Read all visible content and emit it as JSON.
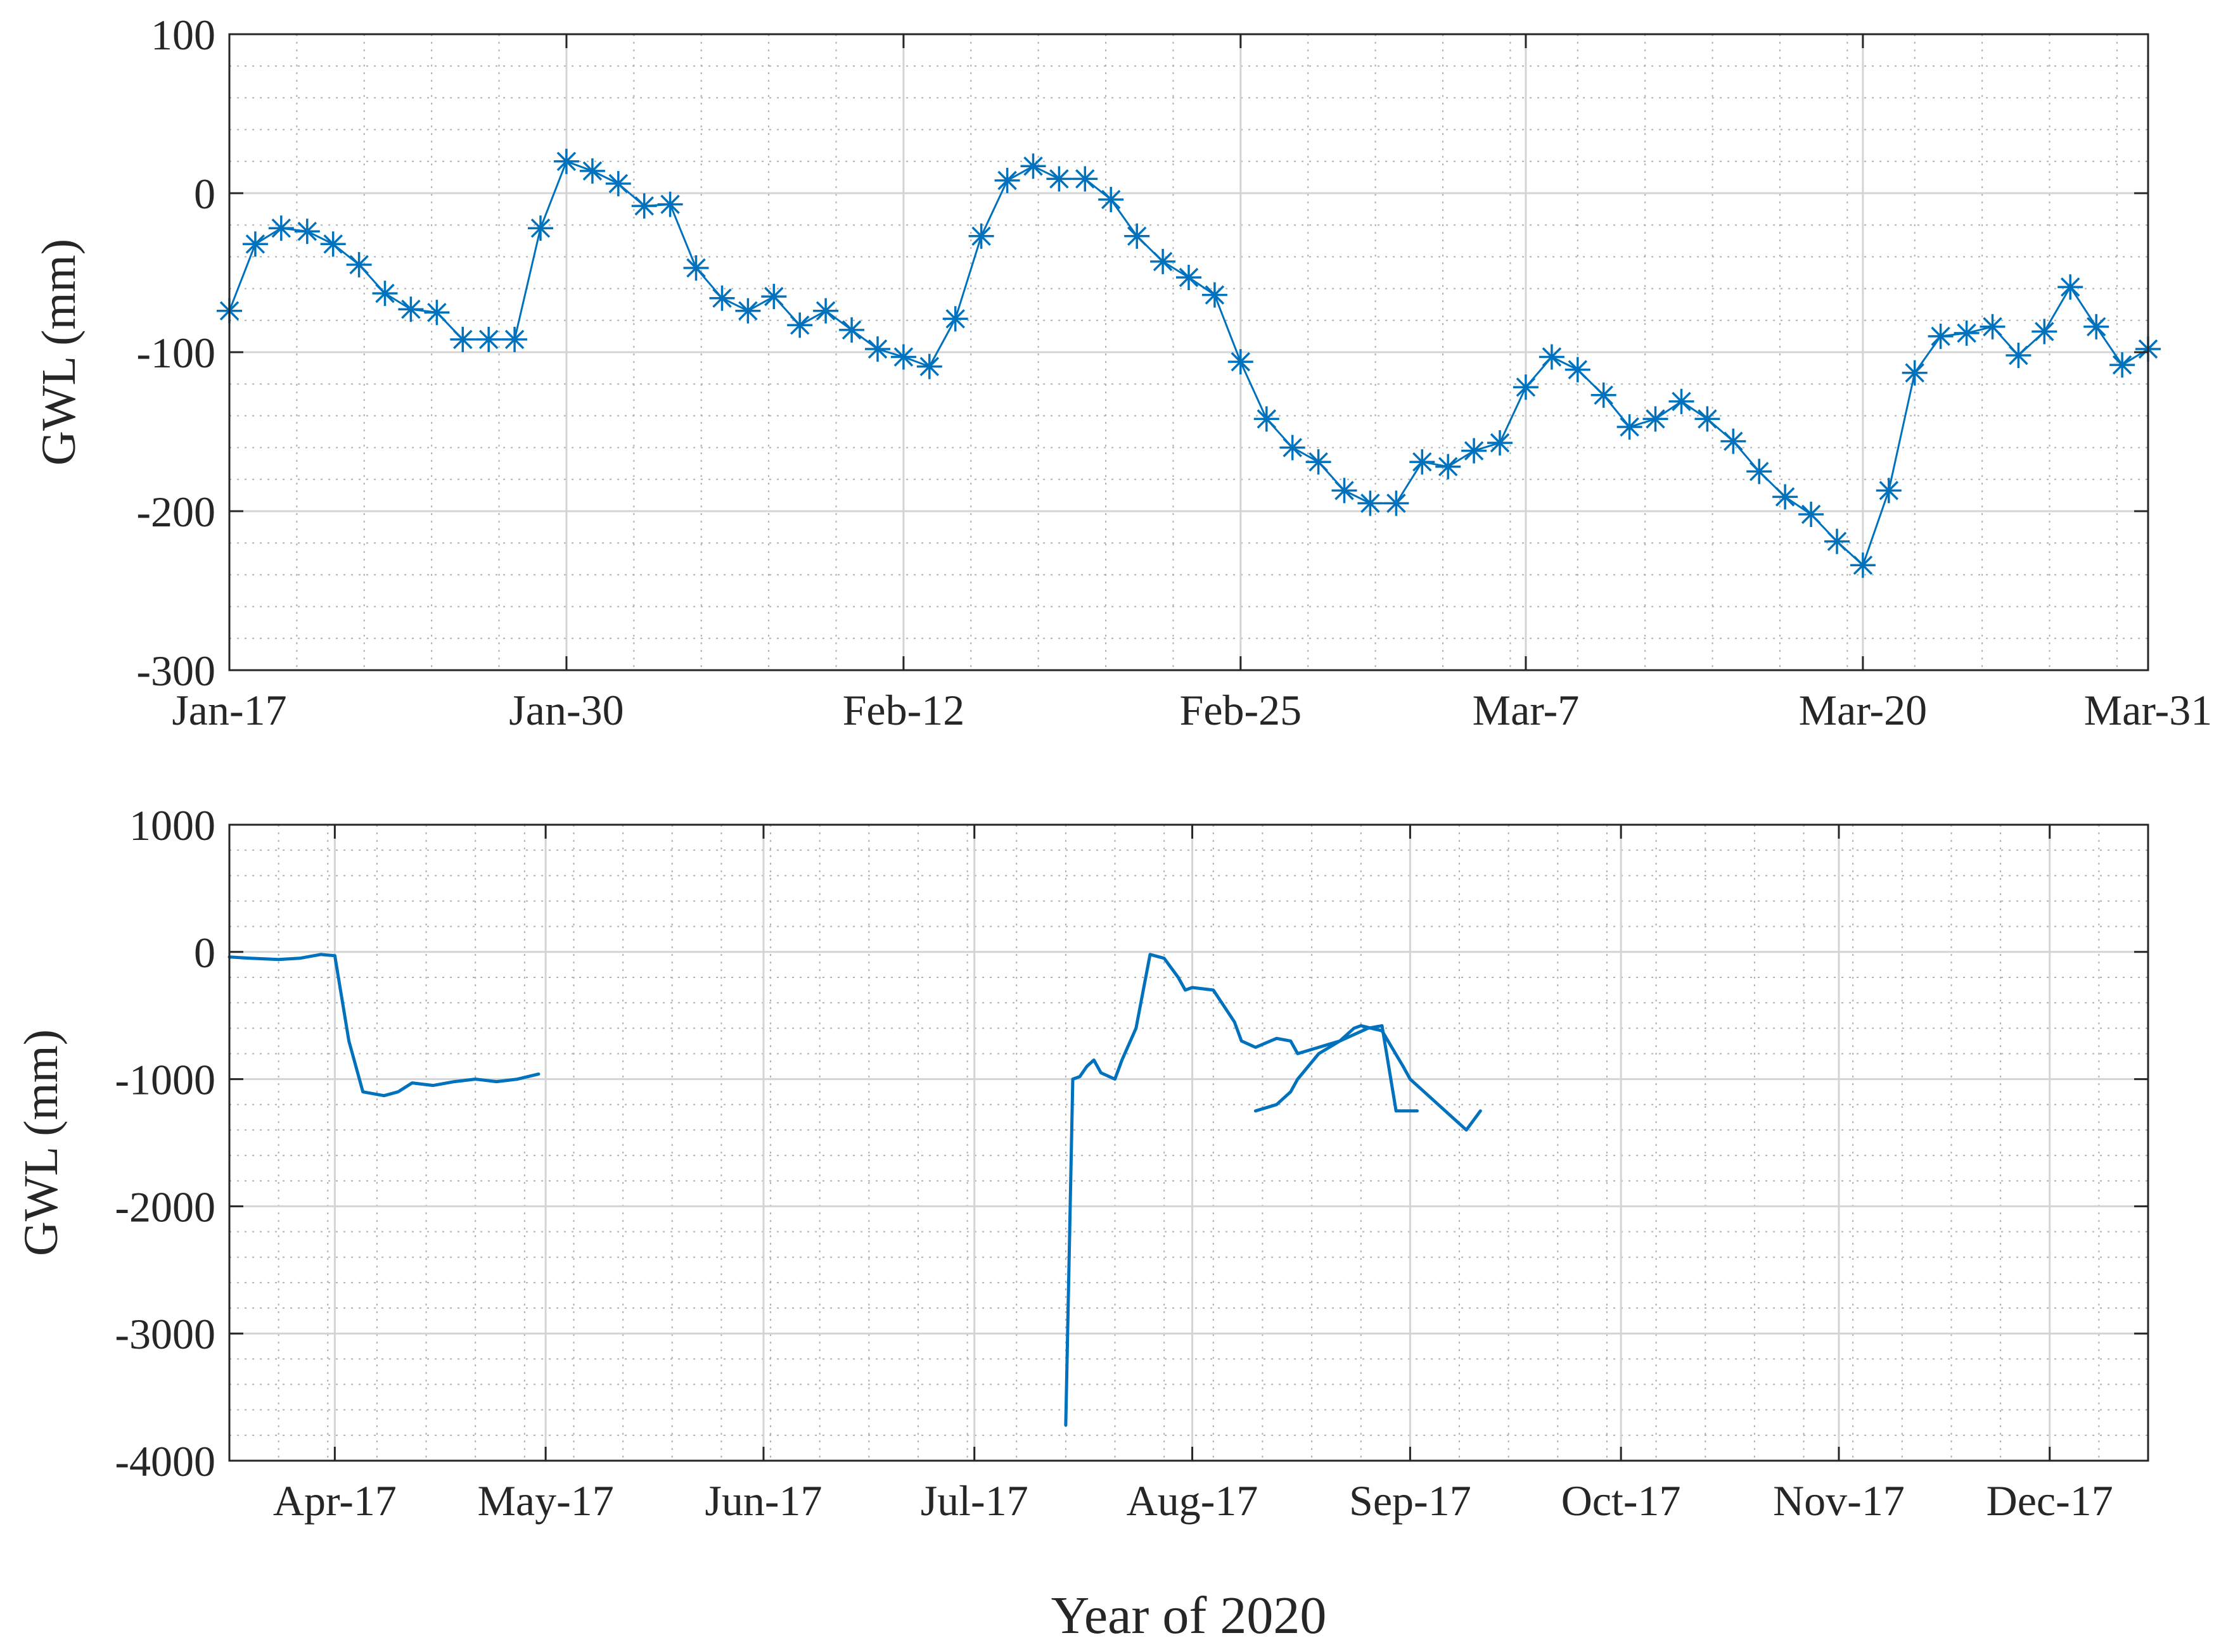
{
  "figure": {
    "xlabel": "Year of 2020"
  },
  "colors": {
    "series": "#0072BD",
    "axis": "#262626",
    "major_grid": "#d4d4d4",
    "minor_grid": "#b0b0b0"
  },
  "chart_data": [
    {
      "type": "line",
      "marker": "asterisk",
      "grid": true,
      "minor_grid": true,
      "ylabel": "GWL (mm)",
      "ylim": [
        -300,
        100
      ],
      "yticks": [
        100,
        0,
        -100,
        -200,
        -300
      ],
      "ytick_labels": [
        "100",
        "0",
        "-100",
        "-200",
        "-300"
      ],
      "xlim": [
        "2020-01-17",
        "2020-03-31"
      ],
      "xticks": [
        "2020-01-17",
        "2020-01-30",
        "2020-02-12",
        "2020-02-25",
        "2020-03-07",
        "2020-03-20",
        "2020-03-31"
      ],
      "xtick_labels": [
        "Jan-17",
        "Jan-30",
        "Feb-12",
        "Feb-25",
        "Mar-7",
        "Mar-20",
        "Mar-31"
      ],
      "series": [
        {
          "dates": [
            "2020-01-17",
            "2020-01-18",
            "2020-01-19",
            "2020-01-20",
            "2020-01-21",
            "2020-01-22",
            "2020-01-23",
            "2020-01-24",
            "2020-01-25",
            "2020-01-26",
            "2020-01-27",
            "2020-01-28",
            "2020-01-29",
            "2020-01-30",
            "2020-01-31",
            "2020-02-01",
            "2020-02-02",
            "2020-02-03",
            "2020-02-04",
            "2020-02-05",
            "2020-02-06",
            "2020-02-07",
            "2020-02-08",
            "2020-02-09",
            "2020-02-10",
            "2020-02-11",
            "2020-02-12",
            "2020-02-13",
            "2020-02-14",
            "2020-02-15",
            "2020-02-16",
            "2020-02-17",
            "2020-02-18",
            "2020-02-19",
            "2020-02-20",
            "2020-02-21",
            "2020-02-22",
            "2020-02-23",
            "2020-02-24",
            "2020-02-25",
            "2020-02-26",
            "2020-02-27",
            "2020-02-28",
            "2020-02-29",
            "2020-03-01",
            "2020-03-02",
            "2020-03-03",
            "2020-03-04",
            "2020-03-05",
            "2020-03-06",
            "2020-03-07",
            "2020-03-08",
            "2020-03-09",
            "2020-03-10",
            "2020-03-11",
            "2020-03-12",
            "2020-03-13",
            "2020-03-14",
            "2020-03-15",
            "2020-03-16",
            "2020-03-17",
            "2020-03-18",
            "2020-03-19",
            "2020-03-20",
            "2020-03-21",
            "2020-03-22",
            "2020-03-23",
            "2020-03-24",
            "2020-03-25",
            "2020-03-26",
            "2020-03-27",
            "2020-03-28",
            "2020-03-29",
            "2020-03-30",
            "2020-03-31"
          ],
          "values": [
            -74,
            -32,
            -22,
            -24,
            -32,
            -45,
            -63,
            -73,
            -75,
            -92,
            -92,
            -92,
            -22,
            20,
            14,
            6,
            -8,
            -7,
            -47,
            -66,
            -74,
            -65,
            -83,
            -74,
            -86,
            -98,
            -103,
            -109,
            -79,
            -27,
            8,
            17,
            9,
            9,
            -4,
            -27,
            -43,
            -53,
            -64,
            -106,
            -142,
            -160,
            -169,
            -187,
            -195,
            -195,
            -169,
            -172,
            -162,
            -157,
            -122,
            -103,
            -111,
            -127,
            -147,
            -142,
            -131,
            -142,
            -156,
            -175,
            -191,
            -202,
            -219,
            -234,
            -187,
            -113,
            -90,
            -88,
            -84,
            -102,
            -87,
            -59,
            -84,
            -108,
            -98
          ]
        }
      ]
    },
    {
      "type": "line",
      "marker": "none",
      "grid": true,
      "minor_grid": true,
      "ylabel": "GWL (mm)",
      "ylim": [
        -4000,
        1000
      ],
      "yticks": [
        1000,
        0,
        -1000,
        -2000,
        -3000,
        -4000
      ],
      "ytick_labels": [
        "1000",
        "0",
        "-1000",
        "-2000",
        "-3000",
        "-4000"
      ],
      "xlim": [
        "2020-04-02",
        "2020-12-31"
      ],
      "xticks": [
        "2020-04-17",
        "2020-05-17",
        "2020-06-17",
        "2020-07-17",
        "2020-08-17",
        "2020-09-17",
        "2020-10-17",
        "2020-11-17",
        "2020-12-17"
      ],
      "xtick_labels": [
        "Apr-17",
        "May-17",
        "Jun-17",
        "Jul-17",
        "Aug-17",
        "Sep-17",
        "Oct-17",
        "Nov-17",
        "Dec-17"
      ],
      "series": [
        {
          "segments": [
            {
              "dates": [
                "2020-04-02",
                "2020-04-05",
                "2020-04-09",
                "2020-04-12",
                "2020-04-15",
                "2020-04-17",
                "2020-04-19",
                "2020-04-21",
                "2020-04-24",
                "2020-04-26",
                "2020-04-28",
                "2020-05-01",
                "2020-05-04",
                "2020-05-07",
                "2020-05-10",
                "2020-05-13",
                "2020-05-16"
              ],
              "values": [
                -40,
                -50,
                -60,
                -50,
                -20,
                -30,
                -700,
                -1100,
                -1130,
                -1100,
                -1030,
                -1050,
                -1020,
                -1000,
                -1020,
                -1000,
                -960
              ]
            },
            {
              "dates": [
                "2020-07-30",
                "2020-07-31",
                "2020-08-01",
                "2020-08-02",
                "2020-08-03",
                "2020-08-04",
                "2020-08-06",
                "2020-08-07",
                "2020-08-09",
                "2020-08-11",
                "2020-08-13",
                "2020-08-15",
                "2020-08-16",
                "2020-08-17",
                "2020-08-20",
                "2020-08-23",
                "2020-08-24",
                "2020-08-26",
                "2020-08-29",
                "2020-08-31",
                "2020-09-01",
                "2020-09-04",
                "2020-09-07",
                "2020-09-09",
                "2020-09-11",
                "2020-09-13",
                "2020-09-15",
                "2020-09-17",
                "2020-09-18"
              ],
              "values": [
                -3720,
                -1000,
                -980,
                -900,
                -850,
                -950,
                -1000,
                -850,
                -600,
                -20,
                -50,
                -200,
                -300,
                -280,
                -300,
                -550,
                -700,
                -750,
                -680,
                -700,
                -800,
                -750,
                -700,
                -650,
                -600,
                -580,
                -1250,
                -1250,
                -1250
              ]
            },
            {
              "dates": [
                "2020-08-26",
                "2020-08-29",
                "2020-08-31",
                "2020-09-01",
                "2020-09-04",
                "2020-09-07",
                "2020-09-09",
                "2020-09-10",
                "2020-09-13",
                "2020-09-16",
                "2020-09-17",
                "2020-09-19",
                "2020-09-21",
                "2020-09-23",
                "2020-09-25",
                "2020-09-27"
              ],
              "values": [
                -1250,
                -1200,
                -1100,
                -1000,
                -800,
                -700,
                -600,
                -580,
                -620,
                -900,
                -1000,
                -1100,
                -1200,
                -1300,
                -1400,
                -1250
              ]
            }
          ]
        }
      ]
    }
  ]
}
